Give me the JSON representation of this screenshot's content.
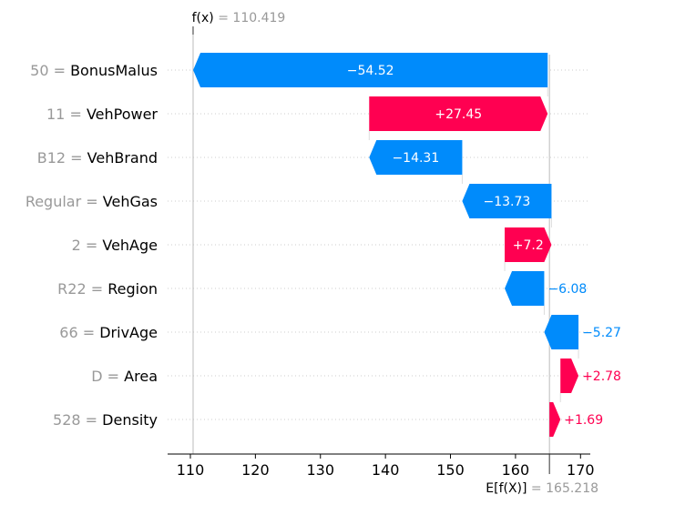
{
  "chart_data": {
    "type": "waterfall",
    "fx_symbol": "f(x)",
    "fx_value": "110.419",
    "ex_symbol": "E[f(X)]",
    "ex_value": "165.218",
    "base_value": 165.218,
    "final_value": 110.419,
    "xlim": [
      106.5,
      171.5
    ],
    "x_ticks": [
      110,
      120,
      130,
      140,
      150,
      160,
      170
    ],
    "tick_labels": [
      "110",
      "120",
      "130",
      "140",
      "150",
      "160",
      "170"
    ],
    "features": [
      {
        "value": "50",
        "name": "BonusMalus",
        "shap": -54.52,
        "label": "−54.52"
      },
      {
        "value": "11",
        "name": "VehPower",
        "shap": 27.45,
        "label": "+27.45"
      },
      {
        "value": "B12",
        "name": "VehBrand",
        "shap": -14.31,
        "label": "−14.31"
      },
      {
        "value": "Regular",
        "name": "VehGas",
        "shap": -13.73,
        "label": "−13.73"
      },
      {
        "value": "2",
        "name": "VehAge",
        "shap": 7.2,
        "label": "+7.2"
      },
      {
        "value": "R22",
        "name": "Region",
        "shap": -6.08,
        "label": "−6.08"
      },
      {
        "value": "66",
        "name": "DrivAge",
        "shap": -5.27,
        "label": "−5.27"
      },
      {
        "value": "D",
        "name": "Area",
        "shap": 2.78,
        "label": "+2.78"
      },
      {
        "value": "528",
        "name": "Density",
        "shap": 1.69,
        "label": "+1.69"
      }
    ],
    "colors": {
      "positive": "#ff0051",
      "negative": "#008bfb",
      "grid": "#cccccc",
      "muted": "#999999"
    }
  }
}
